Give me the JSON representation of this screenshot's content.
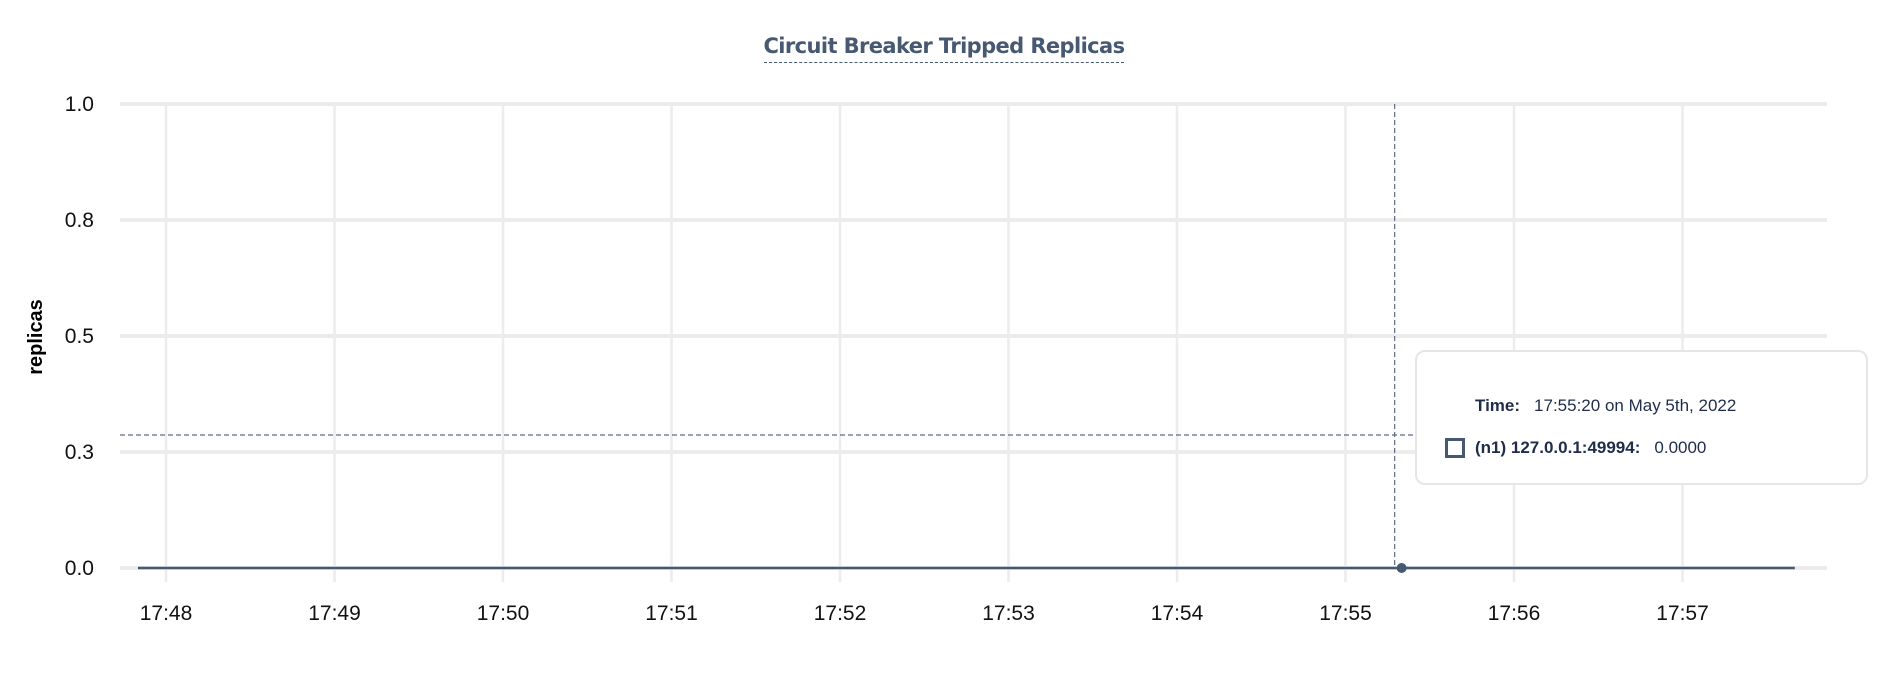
{
  "chart_data": {
    "type": "line",
    "title": "Circuit Breaker Tripped Replicas",
    "ylabel": "replicas",
    "xlabel": "",
    "ylim": [
      0,
      1
    ],
    "yticks": [
      0,
      0.25,
      0.5,
      0.75,
      1
    ],
    "ytick_labels": [
      "0.0",
      "0.3",
      "0.5",
      "0.8",
      "1.0"
    ],
    "xticks": [
      "17:48",
      "17:49",
      "17:50",
      "17:51",
      "17:52",
      "17:53",
      "17:54",
      "17:55",
      "17:56",
      "17:57"
    ],
    "xrange": [
      "17:47:50",
      "17:57:40"
    ],
    "grid": true,
    "series": [
      {
        "name": "(n1) 127.0.0.1:49994",
        "color": "#475872",
        "x": [
          "17:47:50",
          "17:48:00",
          "17:49:00",
          "17:50:00",
          "17:51:00",
          "17:52:00",
          "17:53:00",
          "17:54:00",
          "17:55:00",
          "17:55:20",
          "17:56:00",
          "17:57:00",
          "17:57:40"
        ],
        "y": [
          0,
          0,
          0,
          0,
          0,
          0,
          0,
          0,
          0,
          0,
          0,
          0,
          0
        ]
      }
    ],
    "hover": {
      "x": "17:55:20",
      "y": 0
    }
  },
  "tooltip": {
    "time_label": "Time:",
    "time_value": "17:55:20 on May 5th, 2022",
    "series_label": "(n1) 127.0.0.1:49994:",
    "series_value": "0.0000"
  },
  "colors": {
    "series": "#475872",
    "grid": "#ececec",
    "text": "#1f2d4a"
  }
}
